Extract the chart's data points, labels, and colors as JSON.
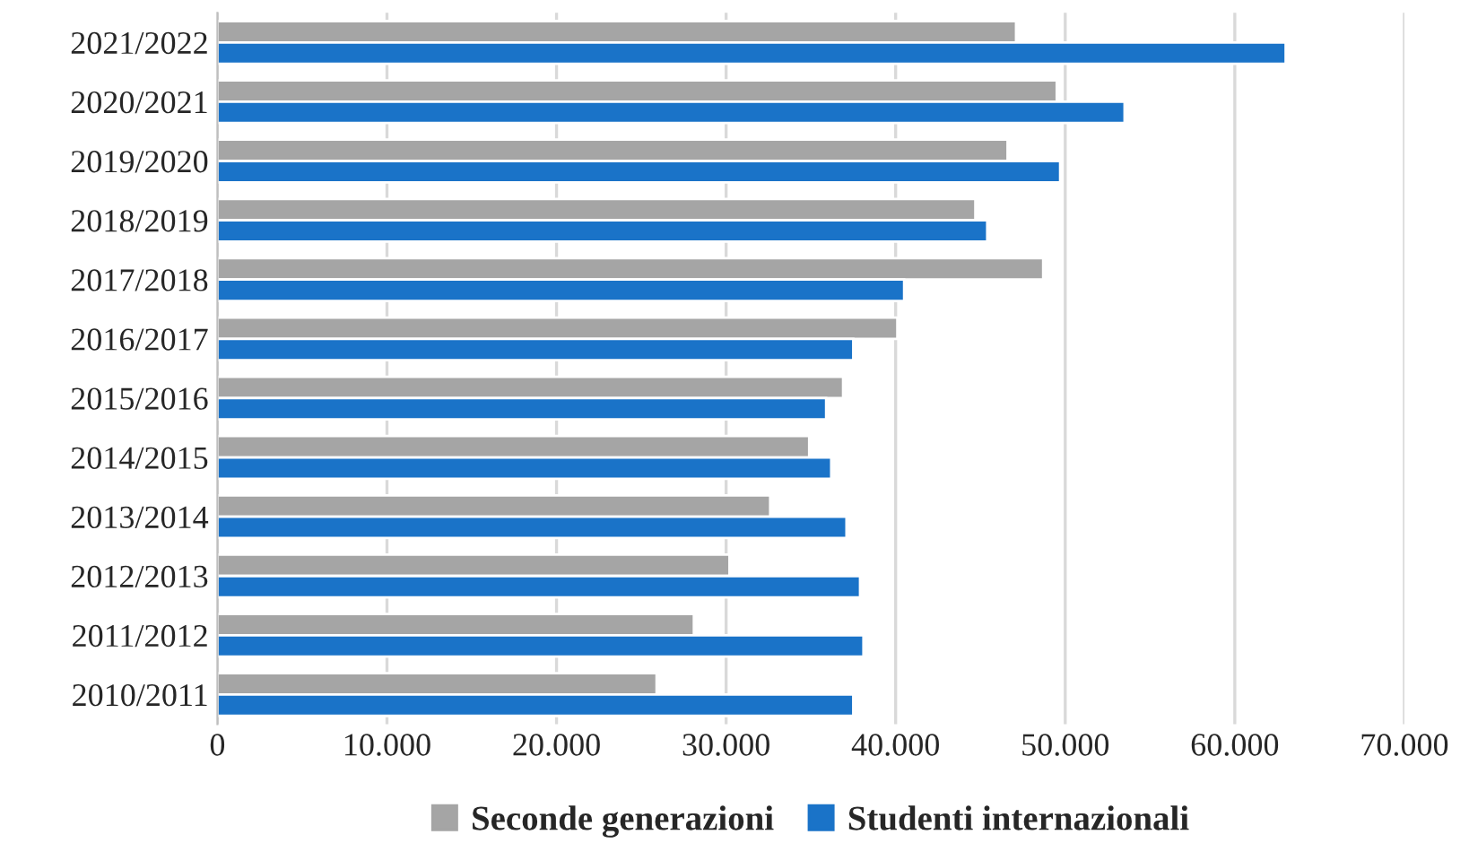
{
  "chart_data": {
    "type": "bar",
    "orientation": "horizontal",
    "categories": [
      "2021/2022",
      "2020/2021",
      "2019/2020",
      "2018/2019",
      "2017/2018",
      "2016/2017",
      "2015/2016",
      "2014/2015",
      "2013/2014",
      "2012/2013",
      "2011/2012",
      "2010/2011"
    ],
    "series": [
      {
        "name": "Seconde generazioni",
        "color": "#a5a5a5",
        "values": [
          47100,
          49500,
          46600,
          44700,
          48700,
          40100,
          36900,
          34900,
          32600,
          30200,
          28100,
          25900
        ]
      },
      {
        "name": "Studenti internazionali",
        "color": "#1a73c8",
        "values": [
          63000,
          53500,
          49700,
          45400,
          40500,
          37500,
          35900,
          36200,
          37100,
          37900,
          38100,
          37500
        ]
      }
    ],
    "xlim": [
      0,
      70000
    ],
    "xticks": [
      0,
      {
        "value": 10000,
        "label": "10.000"
      },
      {
        "value": 20000,
        "label": "20.000"
      },
      {
        "value": 30000,
        "label": "30.000"
      },
      {
        "value": 40000,
        "label": "40.000"
      },
      {
        "value": 50000,
        "label": "50.000"
      },
      {
        "value": 60000,
        "label": "60.000"
      },
      {
        "value": 70000,
        "label": "70.000"
      }
    ],
    "grid": "x",
    "legend": "bottom"
  }
}
